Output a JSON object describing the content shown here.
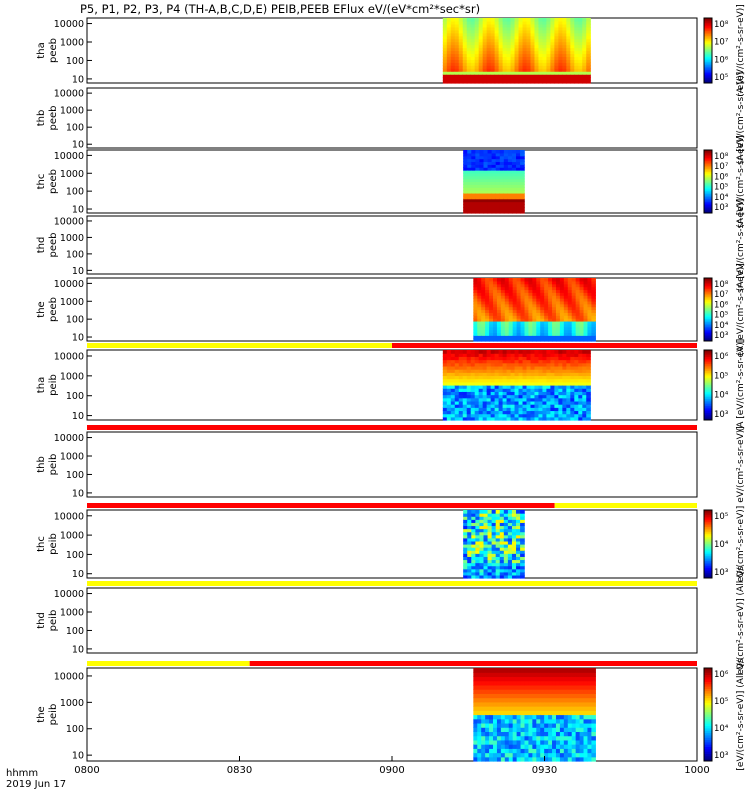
{
  "title": "P5, P1, P2, P3, P4 (TH-A,B,C,D,E) PEIB,PEEB EFlux eV/(eV*cm²*sec*sr)",
  "time_footer": {
    "line1": "hhmm",
    "line2": "2019 Jun 17"
  },
  "chart_data": [
    {
      "type": "heatmap",
      "panels": [
        {
          "name": "tha_peeb",
          "ylabel_line1": "tha",
          "ylabel_line2": "peeb",
          "data_start": "09:10",
          "data_end": "09:39",
          "colorbar": {
            "labels": [
              "10⁸",
              "10⁷",
              "10⁶",
              "10⁵"
            ],
            "title": "(A [eV/(cm²-s-sr-eV)]"
          }
        },
        {
          "name": "thb_peeb",
          "ylabel_line1": "thb",
          "ylabel_line2": "peeb",
          "data_start": null,
          "data_end": null,
          "colorbar": null,
          "side_text": "(A [eV/(cm²-s-sr-eV)]"
        },
        {
          "name": "thc_peeb",
          "ylabel_line1": "thc",
          "ylabel_line2": "peeb",
          "data_start": "09:14",
          "data_end": "09:26",
          "colorbar": {
            "labels": [
              "10⁸",
              "10⁷",
              "10⁶",
              "10⁵",
              "10⁴",
              "10³"
            ],
            "title": "(A [eV/(cm²-s-sr-eV)]"
          }
        },
        {
          "name": "thd_peeb",
          "ylabel_line1": "thd",
          "ylabel_line2": "peeb",
          "data_start": null,
          "data_end": null,
          "colorbar": null,
          "side_text": "(A [eV/(cm²-s-sr-eV)]"
        },
        {
          "name": "the_peeb",
          "ylabel_line1": "the",
          "ylabel_line2": "peeb",
          "data_start": "09:16",
          "data_end": "09:40",
          "colorbar": {
            "labels": [
              "10⁸",
              "10⁷",
              "10⁶",
              "10⁵",
              "10⁴",
              "10³"
            ],
            "title": "(A [eV/(cm²-s-sr-eV)]"
          }
        },
        {
          "name": "tha_peib",
          "ylabel_line1": "tha",
          "ylabel_line2": "peib",
          "data_start": "09:10",
          "data_end": "09:39",
          "colorbar": {
            "labels": [
              "10⁶",
              "10⁵",
              "10⁴",
              "10³"
            ],
            "title": "(A [eV/(cm²-s-sr-eV)]"
          }
        },
        {
          "name": "thb_peib",
          "ylabel_line1": "thb",
          "ylabel_line2": "peib",
          "data_start": null,
          "data_end": null,
          "colorbar": null,
          "side_text": "eV/(cm²-s-sr-eV)]"
        },
        {
          "name": "thc_peib",
          "ylabel_line1": "thc",
          "ylabel_line2": "peib",
          "data_start": "09:14",
          "data_end": "09:26",
          "colorbar": {
            "labels": [
              "10⁵",
              "10⁴",
              "10³"
            ],
            "title": "eV/(cm²-s-sr-eV)]"
          }
        },
        {
          "name": "thd_peib",
          "ylabel_line1": "thd",
          "ylabel_line2": "peib",
          "data_start": null,
          "data_end": null,
          "colorbar": null,
          "side_text": "eV/(cm²-s-sr-eV)] (All Qs"
        },
        {
          "name": "the_peib",
          "ylabel_line1": "the",
          "ylabel_line2": "peib",
          "data_start": "09:16",
          "data_end": "09:40",
          "colorbar": {
            "labels": [
              "10⁶",
              "10⁵",
              "10⁴",
              "10³"
            ],
            "title": "[eV/(cm²-s-sr-eV)] (All Qs"
          }
        }
      ],
      "y_ticks": [
        "10000",
        "1000",
        "100",
        "10"
      ],
      "x_ticks": [
        "0800",
        "0830",
        "0900",
        "0930",
        "1000"
      ],
      "x_range": [
        "08:00",
        "10:00"
      ],
      "y_scale": "log",
      "flag_bars": [
        {
          "after_panel": 5,
          "segments": [
            {
              "start": "08:00",
              "end": "09:00",
              "color": "#ffff00"
            },
            {
              "start": "09:00",
              "end": "10:00",
              "color": "#ff0000"
            }
          ]
        },
        {
          "after_panel": 6,
          "segments": [
            {
              "start": "08:00",
              "end": "10:00",
              "color": "#ff0000"
            }
          ]
        },
        {
          "after_panel": 7,
          "segments": [
            {
              "start": "08:00",
              "end": "09:32",
              "color": "#ff0000"
            },
            {
              "start": "09:32",
              "end": "10:00",
              "color": "#ffff00"
            }
          ]
        },
        {
          "after_panel": 8,
          "segments": [
            {
              "start": "08:00",
              "end": "10:00",
              "color": "#ffff00"
            }
          ]
        },
        {
          "after_panel": 9,
          "segments": [
            {
              "start": "08:00",
              "end": "08:32",
              "color": "#ffff00"
            },
            {
              "start": "08:32",
              "end": "10:00",
              "color": "#ff0000"
            }
          ]
        }
      ]
    }
  ]
}
